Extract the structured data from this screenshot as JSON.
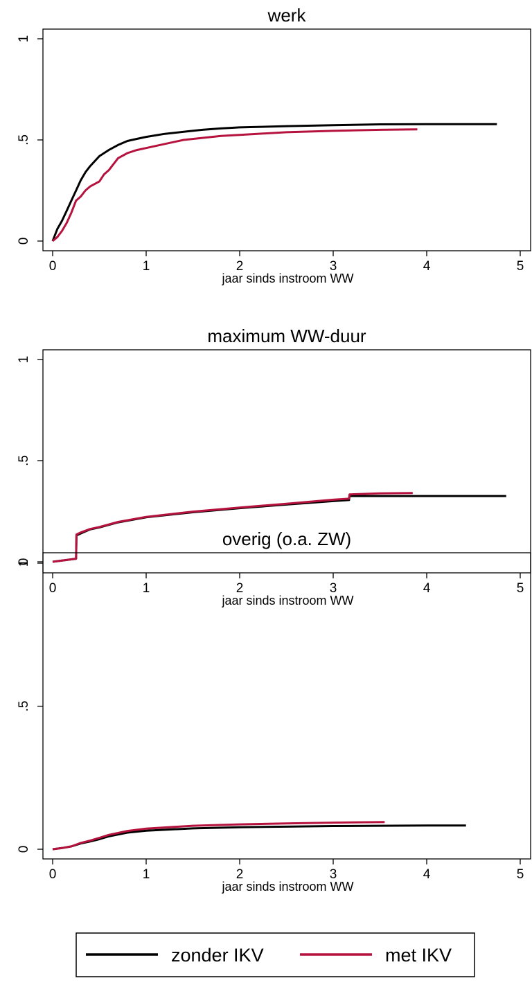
{
  "chart_data": [
    {
      "type": "line",
      "title": "werk",
      "xlabel": "jaar sinds instroom WW",
      "ylabel": "",
      "xlim": [
        0,
        5
      ],
      "ylim": [
        0,
        1
      ],
      "x_ticks": [
        "0",
        "1",
        "2",
        "3",
        "4",
        "5"
      ],
      "y_ticks": [
        "0",
        ".5",
        "1"
      ],
      "grid": false,
      "series": [
        {
          "name": "zonder IKV",
          "color": "#000000",
          "x": [
            0,
            0.05,
            0.1,
            0.15,
            0.2,
            0.25,
            0.3,
            0.35,
            0.4,
            0.5,
            0.6,
            0.7,
            0.8,
            0.9,
            1.0,
            1.2,
            1.4,
            1.6,
            1.8,
            2.0,
            2.5,
            3.0,
            3.5,
            4.0,
            4.5,
            4.75
          ],
          "y": [
            0,
            0.06,
            0.1,
            0.15,
            0.2,
            0.25,
            0.3,
            0.34,
            0.37,
            0.42,
            0.45,
            0.475,
            0.495,
            0.505,
            0.515,
            0.53,
            0.54,
            0.55,
            0.557,
            0.562,
            0.568,
            0.573,
            0.577,
            0.578,
            0.578,
            0.578
          ]
        },
        {
          "name": "met IKV",
          "color": "#b5123e",
          "x": [
            0,
            0.05,
            0.1,
            0.15,
            0.2,
            0.25,
            0.3,
            0.35,
            0.4,
            0.5,
            0.55,
            0.6,
            0.7,
            0.8,
            0.9,
            1.0,
            1.2,
            1.4,
            1.6,
            1.8,
            2.0,
            2.5,
            3.0,
            3.5,
            3.9
          ],
          "y": [
            0,
            0.02,
            0.05,
            0.09,
            0.14,
            0.2,
            0.22,
            0.25,
            0.27,
            0.295,
            0.33,
            0.35,
            0.41,
            0.435,
            0.45,
            0.46,
            0.48,
            0.5,
            0.51,
            0.52,
            0.525,
            0.538,
            0.545,
            0.55,
            0.552
          ]
        }
      ]
    },
    {
      "type": "line",
      "title": "maximum WW-duur",
      "xlabel": "jaar sinds instroom WW",
      "ylabel": "",
      "xlim": [
        0,
        5
      ],
      "ylim": [
        0,
        1
      ],
      "x_ticks": [
        "0",
        "1",
        "2",
        "3",
        "4",
        "5"
      ],
      "y_ticks": [
        "0",
        ".5",
        "1"
      ],
      "grid": false,
      "series": [
        {
          "name": "zonder IKV",
          "color": "#000000",
          "x": [
            0,
            0.25,
            0.255,
            0.3,
            0.4,
            0.5,
            0.7,
            1.0,
            1.5,
            2.0,
            2.5,
            3.0,
            3.17,
            3.175,
            3.5,
            4.0,
            4.5,
            4.85
          ],
          "y": [
            0,
            0.015,
            0.13,
            0.14,
            0.16,
            0.17,
            0.195,
            0.22,
            0.245,
            0.265,
            0.283,
            0.3,
            0.305,
            0.325,
            0.325,
            0.325,
            0.325,
            0.325
          ]
        },
        {
          "name": "met IKV",
          "color": "#b5123e",
          "x": [
            0,
            0.25,
            0.255,
            0.3,
            0.4,
            0.5,
            0.7,
            1.0,
            1.5,
            2.0,
            2.5,
            3.0,
            3.17,
            3.175,
            3.5,
            3.85
          ],
          "y": [
            0,
            0.015,
            0.135,
            0.145,
            0.162,
            0.172,
            0.197,
            0.222,
            0.248,
            0.268,
            0.287,
            0.307,
            0.312,
            0.333,
            0.338,
            0.34
          ]
        }
      ]
    },
    {
      "type": "line",
      "title": "overig (o.a. ZW)",
      "xlabel": "jaar sinds instroom WW",
      "ylabel": "",
      "xlim": [
        0,
        5
      ],
      "ylim": [
        0,
        1
      ],
      "x_ticks": [
        "0",
        "1",
        "2",
        "3",
        "4",
        "5"
      ],
      "y_ticks": [
        "0",
        ".5",
        "1"
      ],
      "grid": false,
      "series": [
        {
          "name": "zonder IKV",
          "color": "#000000",
          "x": [
            0,
            0.1,
            0.2,
            0.3,
            0.4,
            0.5,
            0.6,
            0.8,
            1.0,
            1.5,
            2.0,
            2.5,
            3.0,
            3.5,
            4.0,
            4.42
          ],
          "y": [
            0,
            0.004,
            0.01,
            0.02,
            0.027,
            0.035,
            0.045,
            0.058,
            0.065,
            0.073,
            0.077,
            0.079,
            0.081,
            0.082,
            0.083,
            0.083
          ]
        },
        {
          "name": "met IKV",
          "color": "#b5123e",
          "x": [
            0,
            0.1,
            0.2,
            0.3,
            0.4,
            0.5,
            0.6,
            0.8,
            1.0,
            1.5,
            2.0,
            2.5,
            3.0,
            3.55
          ],
          "y": [
            0,
            0.004,
            0.01,
            0.022,
            0.03,
            0.04,
            0.05,
            0.064,
            0.072,
            0.082,
            0.087,
            0.09,
            0.093,
            0.095
          ]
        }
      ]
    }
  ],
  "legend": {
    "placement": "bottom",
    "items": [
      {
        "label": "zonder IKV",
        "color": "#000000"
      },
      {
        "label": "met IKV",
        "color": "#b5123e"
      }
    ]
  }
}
